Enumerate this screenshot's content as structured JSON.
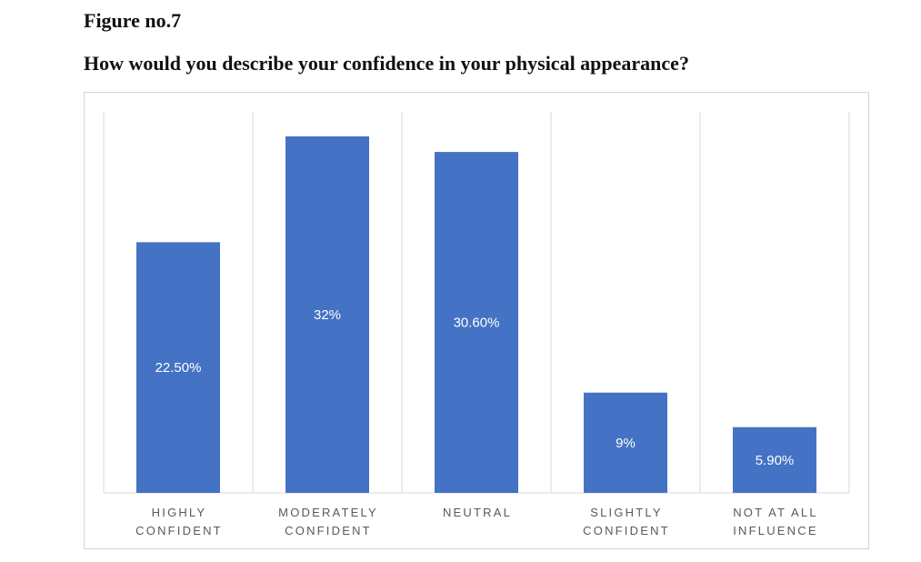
{
  "figure_label": "Figure no.7",
  "question": "How would you describe your confidence in your physical appearance?",
  "colors": {
    "bar": "#4472c4",
    "grid": "#d9d9d9",
    "axis": "#d9d9d9",
    "label_text": "#ffffff",
    "category_text": "#595959"
  },
  "chart_data": {
    "type": "bar",
    "title": "",
    "xlabel": "",
    "ylabel": "",
    "categories": [
      [
        "HIGHLY",
        "CONFIDENT"
      ],
      [
        "MODERATELY",
        "CONFIDENT"
      ],
      [
        "NEUTRAL"
      ],
      [
        "SLIGHTLY",
        "CONFIDENT"
      ],
      [
        "NOT AT ALL",
        "INFLUENCE"
      ]
    ],
    "values": [
      22.5,
      32,
      30.6,
      9,
      5.9
    ],
    "data_labels": [
      "22.50%",
      "32%",
      "30.60%",
      "9%",
      "5.90%"
    ],
    "ylim": [
      0,
      34.2
    ],
    "grid": "vertical category separators",
    "legend": "none"
  }
}
